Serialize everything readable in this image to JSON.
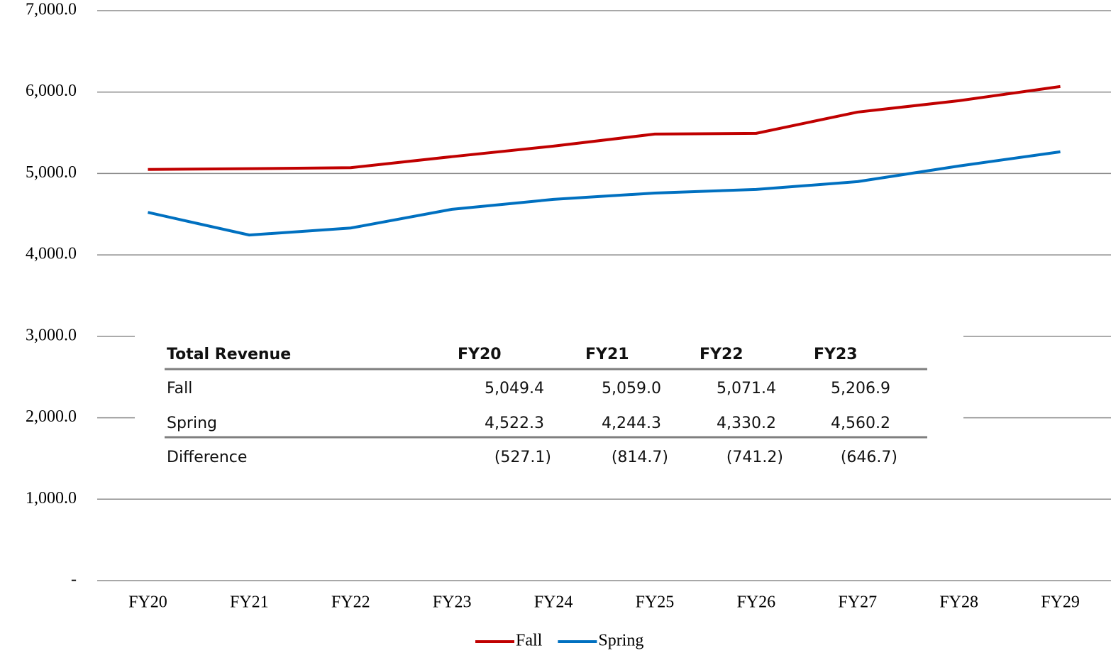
{
  "chart_data": {
    "type": "line",
    "categories": [
      "FY20",
      "FY21",
      "FY22",
      "FY23",
      "FY24",
      "FY25",
      "FY26",
      "FY27",
      "FY28",
      "FY29"
    ],
    "series": [
      {
        "name": "Fall",
        "color": "#c00000",
        "values": [
          5049.4,
          5059.0,
          5071.4,
          5206.9,
          5336,
          5484,
          5493,
          5754,
          5894,
          6068
        ]
      },
      {
        "name": "Spring",
        "color": "#0070c0",
        "values": [
          4522.3,
          4244.3,
          4330.2,
          4560.2,
          4682,
          4760,
          4804,
          4900,
          5092,
          5266
        ]
      }
    ],
    "ylim": [
      0,
      7000
    ],
    "yticks": [
      {
        "value": 0,
        "label": "-"
      },
      {
        "value": 1000,
        "label": "1,000.0"
      },
      {
        "value": 2000,
        "label": "2,000.0"
      },
      {
        "value": 3000,
        "label": "3,000.0"
      },
      {
        "value": 4000,
        "label": "4,000.0"
      },
      {
        "value": 5000,
        "label": "5,000.0"
      },
      {
        "value": 6000,
        "label": "6,000.0"
      },
      {
        "value": 7000,
        "label": "7,000.0"
      }
    ],
    "grid": true,
    "legend": "bottom"
  },
  "table": {
    "header": [
      "Total Revenue",
      "FY20",
      "FY21",
      "FY22",
      "FY23"
    ],
    "rows": [
      [
        "Fall",
        "5,049.4",
        "5,059.0",
        "5,071.4",
        "5,206.9"
      ],
      [
        "Spring",
        "4,522.3",
        "4,244.3",
        "4,330.2",
        "4,560.2"
      ],
      [
        "Difference",
        "(527.1)",
        "(814.7)",
        "(741.2)",
        "(646.7)"
      ]
    ]
  }
}
